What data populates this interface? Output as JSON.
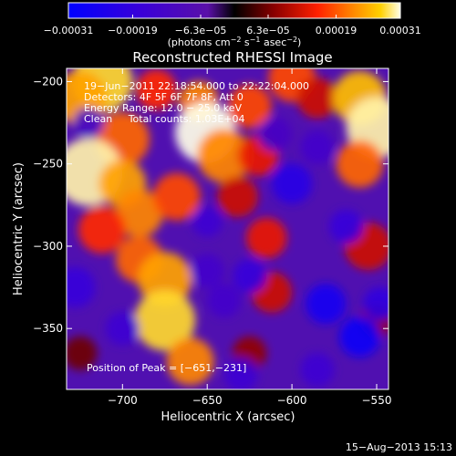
{
  "chart_data": {
    "type": "heatmap",
    "title": "Reconstructed RHESSI Image",
    "xlabel": "Heliocentric X (arcsec)",
    "ylabel": "Heliocentric Y (arcsec)",
    "xlim": [
      -733,
      -543
    ],
    "ylim": [
      -387,
      -192
    ],
    "x_ticks": [
      -700,
      -650,
      -600,
      -550
    ],
    "y_ticks": [
      -200,
      -250,
      -300,
      -350
    ],
    "x_tick_labels": [
      "−700",
      "−650",
      "−600",
      "−550"
    ],
    "y_tick_labels": [
      "−200",
      "−250",
      "−300",
      "−350"
    ],
    "colorbar": {
      "range": [
        -0.00031,
        0.00031
      ],
      "tick_values": [
        -0.00031,
        -0.00019,
        -6.3e-05,
        6.3e-05,
        0.00019,
        0.00031
      ],
      "tick_labels": [
        "−0.00031",
        "−0.00019",
        "−6.3e−05",
        "6.3e−05",
        "0.00019",
        "0.00031"
      ],
      "unit_main": "(photons cm",
      "unit_exp1": "−2",
      "unit_mid": " s",
      "unit_exp2": "−1",
      "unit_mid2": " asec",
      "unit_exp3": "−2",
      "unit_end": ")"
    },
    "annotations": {
      "time_range": "19−Jun−2011 22:18:54.000 to 22:22:04.000",
      "detectors": "Detectors: 4F 5F 6F 7F 8F, Att 0",
      "energy": "Energy Range: 12.0 − 25.0 keV",
      "clean": "Clean     Total counts: 1.03E+04",
      "peak": "Position of Peak = [−651,−231]"
    },
    "footer_date": "15−Aug−2013 15:13",
    "peak_position": [
      -651,
      -231
    ],
    "blobs": [
      {
        "x": -712,
        "y": -200,
        "r": 18,
        "v": 0.00028
      },
      {
        "x": -725,
        "y": -210,
        "r": 16,
        "v": 0.00024
      },
      {
        "x": -680,
        "y": -205,
        "r": 12,
        "v": 0.00016
      },
      {
        "x": -655,
        "y": -212,
        "r": 12,
        "v": 0.00022
      },
      {
        "x": -651,
        "y": -231,
        "r": 18,
        "v": 0.00031
      },
      {
        "x": -640,
        "y": -245,
        "r": 16,
        "v": 0.00022
      },
      {
        "x": -625,
        "y": -215,
        "r": 13,
        "v": 0.00018
      },
      {
        "x": -620,
        "y": -245,
        "r": 12,
        "v": 0.00014
      },
      {
        "x": -600,
        "y": -198,
        "r": 14,
        "v": 0.00018
      },
      {
        "x": -585,
        "y": -210,
        "r": 12,
        "v": 0.00012
      },
      {
        "x": -560,
        "y": -210,
        "r": 16,
        "v": 0.00026
      },
      {
        "x": -550,
        "y": -228,
        "r": 18,
        "v": 0.0003
      },
      {
        "x": -560,
        "y": -250,
        "r": 14,
        "v": 0.0002
      },
      {
        "x": -700,
        "y": -235,
        "r": 16,
        "v": 0.0002
      },
      {
        "x": -720,
        "y": -255,
        "r": 20,
        "v": 0.0003
      },
      {
        "x": -700,
        "y": -262,
        "r": 14,
        "v": 0.00024
      },
      {
        "x": -690,
        "y": -280,
        "r": 14,
        "v": 0.00022
      },
      {
        "x": -668,
        "y": -270,
        "r": 14,
        "v": 0.00018
      },
      {
        "x": -712,
        "y": -290,
        "r": 14,
        "v": 0.00016
      },
      {
        "x": -690,
        "y": -308,
        "r": 14,
        "v": 0.0002
      },
      {
        "x": -675,
        "y": -320,
        "r": 16,
        "v": 0.00024
      },
      {
        "x": -675,
        "y": -345,
        "r": 18,
        "v": 0.00028
      },
      {
        "x": -660,
        "y": -370,
        "r": 14,
        "v": 0.00022
      },
      {
        "x": -632,
        "y": -270,
        "r": 12,
        "v": 0.00012
      },
      {
        "x": -615,
        "y": -295,
        "r": 12,
        "v": 0.00014
      },
      {
        "x": -612,
        "y": -328,
        "r": 12,
        "v": 0.00012
      },
      {
        "x": -625,
        "y": -365,
        "r": 10,
        "v": 8e-05
      },
      {
        "x": -555,
        "y": -300,
        "r": 14,
        "v": 0.00012
      },
      {
        "x": -550,
        "y": -345,
        "r": 10,
        "v": 8e-05
      },
      {
        "x": -725,
        "y": -365,
        "r": 10,
        "v": 6e-05
      },
      {
        "x": -600,
        "y": -262,
        "r": 12,
        "v": -0.00022
      },
      {
        "x": -568,
        "y": -288,
        "r": 10,
        "v": -0.00018
      },
      {
        "x": -580,
        "y": -335,
        "r": 12,
        "v": -0.00026
      },
      {
        "x": -560,
        "y": -355,
        "r": 12,
        "v": -0.00028
      },
      {
        "x": -548,
        "y": -335,
        "r": 10,
        "v": -0.0002
      },
      {
        "x": -728,
        "y": -325,
        "r": 12,
        "v": -0.00018
      },
      {
        "x": -700,
        "y": -350,
        "r": 10,
        "v": -0.00016
      },
      {
        "x": -650,
        "y": -285,
        "r": 9,
        "v": -0.00016
      },
      {
        "x": -650,
        "y": -315,
        "r": 10,
        "v": -0.00014
      },
      {
        "x": -640,
        "y": -333,
        "r": 10,
        "v": -0.00014
      },
      {
        "x": -625,
        "y": -318,
        "r": 10,
        "v": -0.00018
      },
      {
        "x": -630,
        "y": -378,
        "r": 10,
        "v": -0.00016
      },
      {
        "x": -585,
        "y": -375,
        "r": 10,
        "v": -0.00016
      },
      {
        "x": -720,
        "y": -225,
        "r": 9,
        "v": -0.00012
      },
      {
        "x": -610,
        "y": -232,
        "r": 10,
        "v": -0.00012
      },
      {
        "x": -585,
        "y": -240,
        "r": 10,
        "v": -0.00014
      }
    ]
  }
}
